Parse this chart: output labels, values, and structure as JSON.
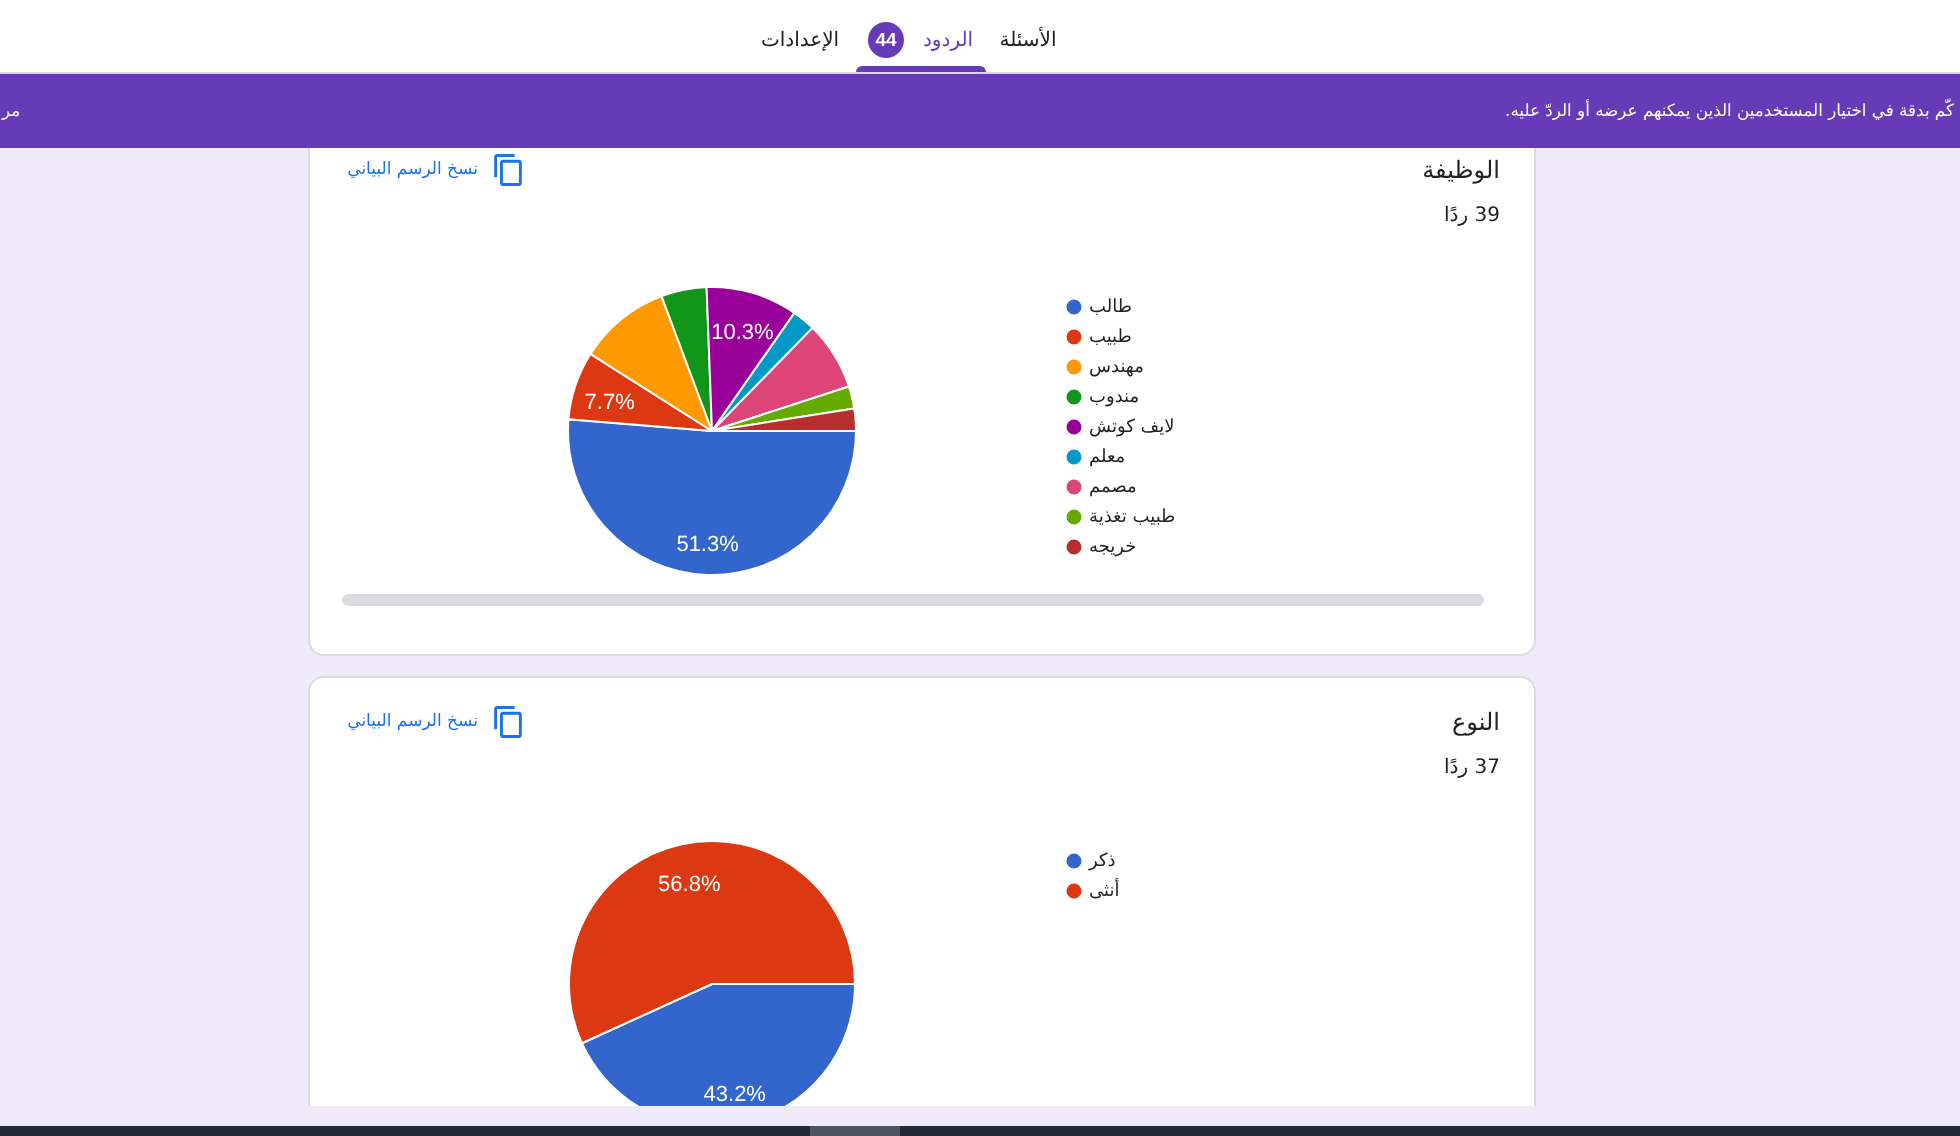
{
  "chart_data": [
    {
      "type": "pie",
      "title": "الوظيفة",
      "categories": [
        "طالب",
        "طبيب",
        "مهندس",
        "مندوب",
        "لايف كوتش",
        "معلم",
        "مصمم",
        "طبيب تغذية",
        "خريجه"
      ],
      "values": [
        51.3,
        7.7,
        10.3,
        5.1,
        10.3,
        2.6,
        7.7,
        2.5,
        2.5
      ],
      "colors": [
        "#3366cc",
        "#dc3912",
        "#ff9900",
        "#109618",
        "#990099",
        "#0099c6",
        "#dd4477",
        "#66aa00",
        "#b82e2e"
      ],
      "value_labels": [
        "51.3%",
        "7.7%",
        null,
        null,
        "10.3%",
        null,
        null,
        null,
        null
      ],
      "legend": "right",
      "annotations": [
        "نسخ الرسم البياني",
        "39 ردًا",
        "الأسئلة",
        "الردود",
        "44",
        "الإعدادات",
        "كّم بدقة في اختيار المستخدمين الذين يمكنهم عرضه أو الردّ عليه.",
        "مر"
      ]
    },
    {
      "type": "pie",
      "title": "النوع",
      "categories": [
        "ذكر",
        "أنثى"
      ],
      "values": [
        43.2,
        56.8
      ],
      "colors": [
        "#3366cc",
        "#dc3912"
      ],
      "value_labels": [
        "43.2%",
        "56.8%"
      ],
      "legend": "right",
      "annotations": [
        "نسخ الرسم البياني",
        "37 ردًا"
      ]
    }
  ]
}
